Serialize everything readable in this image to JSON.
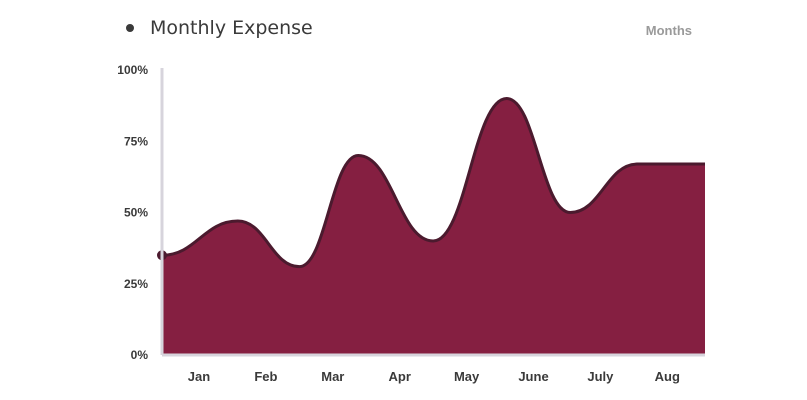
{
  "chart_data": {
    "type": "area",
    "title": "",
    "series": [
      {
        "name": "Monthly Expense",
        "color": "#851f41",
        "stroke": "#4b1a2e"
      }
    ],
    "axis_note": "Months",
    "x": [
      "Jan",
      "Feb",
      "Mar",
      "Apr",
      "May",
      "June",
      "July",
      "Aug"
    ],
    "points": [
      {
        "x": 0.0,
        "y": 35
      },
      {
        "x": 0.58,
        "y": 47
      },
      {
        "x": 1.5,
        "y": 31
      },
      {
        "x": 2.38,
        "y": 70
      },
      {
        "x": 3.5,
        "y": 40
      },
      {
        "x": 4.6,
        "y": 90
      },
      {
        "x": 5.55,
        "y": 50
      },
      {
        "x": 6.55,
        "y": 67
      }
    ],
    "y_ticks": [
      "0%",
      "25%",
      "50%",
      "75%",
      "100%"
    ],
    "y_tick_values": [
      0,
      25,
      50,
      75,
      100
    ],
    "ylim": [
      0,
      100
    ],
    "y_unit": "%",
    "grid": false,
    "legend_position": "top-left"
  }
}
